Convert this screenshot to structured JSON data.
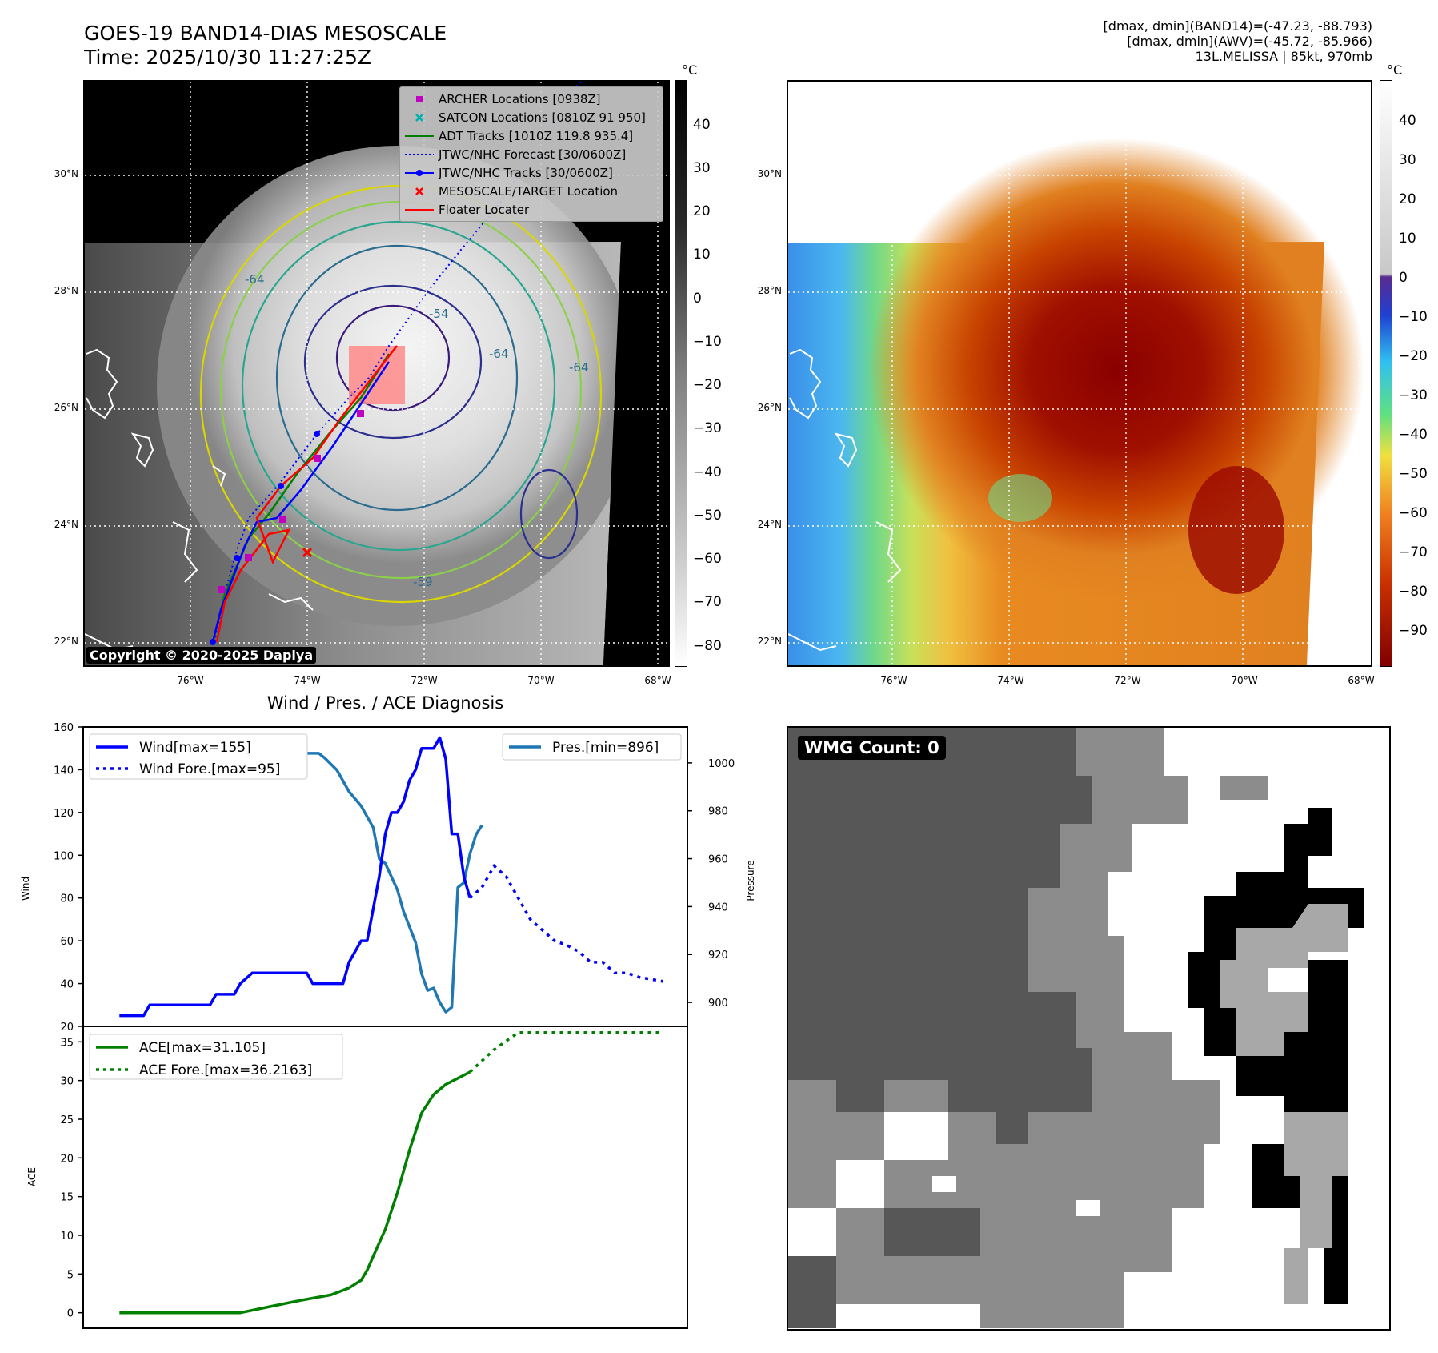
{
  "header": {
    "title_line1": "GOES-19 BAND14-DIAS MESOSCALE",
    "title_line2": "Time: 2025/10/30 11:27:25Z",
    "info_line1": "[dmax, dmin](BAND14)=(-47.23, -88.793)",
    "info_line2": "[dmax, dmin](AWV)=(-45.72, -85.966)",
    "info_line3": "13L.MELISSA | 85kt, 970mb"
  },
  "map_axes": {
    "lat_labels": [
      "30°N",
      "28°N",
      "26°N",
      "24°N",
      "22°N"
    ],
    "lon_labels": [
      "76°W",
      "74°W",
      "72°W",
      "70°W",
      "68°W"
    ]
  },
  "ir_colorbar": {
    "unit": "°C",
    "labels": [
      "40",
      "30",
      "20",
      "10",
      "0",
      "−10",
      "−20",
      "−30",
      "−40",
      "−50",
      "−60",
      "−70",
      "−80"
    ]
  },
  "enhanced_colorbar": {
    "unit": "°C",
    "labels": [
      "40",
      "30",
      "20",
      "10",
      "0",
      "−10",
      "−20",
      "−30",
      "−40",
      "−50",
      "−60",
      "−70",
      "−80",
      "−90"
    ]
  },
  "contour_labels": [
    "-64",
    "-54",
    "-64",
    "-64",
    "-59"
  ],
  "legend": {
    "items": [
      {
        "label": "ARCHER Locations [0938Z]",
        "color": "#c000c0",
        "symbol": "square"
      },
      {
        "label": "SATCON Locations [0810Z 91 950]",
        "color": "#00b0b0",
        "symbol": "x"
      },
      {
        "label": "ADT Tracks [1010Z 119.8 935.4]",
        "color": "#008000",
        "symbol": "line"
      },
      {
        "label": "JTWC/NHC Forecast [30/0600Z]",
        "color": "#0000ff",
        "symbol": "dotted"
      },
      {
        "label": "JTWC/NHC Tracks [30/0600Z]",
        "color": "#0000ff",
        "symbol": "line-dot"
      },
      {
        "label": "MESOSCALE/TARGET Location",
        "color": "#ff0000",
        "symbol": "x"
      },
      {
        "label": "Floater Locater",
        "color": "#ff0000",
        "symbol": "line"
      }
    ]
  },
  "copyright": "Copyright © 2020-2025 Dapiya",
  "diagnosis_title": "Wind / Pres. / ACE Diagnosis",
  "wmg_label": "WMG Count: 0",
  "colors": {
    "wind": "#0000ff",
    "pressure": "#1f77b4",
    "ace": "#008000"
  },
  "chart_data": [
    {
      "type": "line",
      "title": "Wind / Pres. / ACE Diagnosis",
      "ylabel": "Wind",
      "ylim": [
        20,
        160
      ],
      "yticks": [
        "20",
        "40",
        "60",
        "80",
        "100",
        "120",
        "140",
        "160"
      ],
      "series": [
        {
          "name": "Wind[max=155]",
          "style": "solid",
          "x": [
            0,
            4,
            5,
            10,
            15,
            16,
            19,
            20,
            22,
            25,
            26,
            31,
            32,
            37,
            38,
            40,
            41,
            42,
            43,
            44,
            45,
            46,
            47,
            48,
            49,
            50,
            51,
            52,
            53,
            54,
            55,
            56,
            57,
            58
          ],
          "values": [
            25,
            25,
            30,
            30,
            30,
            35,
            35,
            40,
            45,
            45,
            45,
            45,
            40,
            40,
            50,
            60,
            60,
            75,
            90,
            110,
            120,
            120,
            125,
            135,
            140,
            150,
            150,
            150,
            155,
            145,
            110,
            110,
            90,
            80
          ]
        },
        {
          "name": "Wind Fore.[max=95]",
          "style": "dotted",
          "x": [
            58,
            60,
            62,
            64,
            66,
            68,
            70,
            72,
            74,
            76,
            78,
            80,
            82,
            84,
            86,
            88,
            90
          ],
          "values": [
            80,
            85,
            95,
            90,
            80,
            70,
            65,
            60,
            58,
            55,
            50,
            50,
            45,
            45,
            43,
            42,
            41
          ]
        },
        {
          "name": "Pres.[min=896]",
          "style": "solid",
          "axis": "right",
          "ylim": [
            890,
            1015
          ],
          "yticks": [
            "900",
            "920",
            "940",
            "960",
            "980",
            "1000"
          ],
          "x": [
            0,
            5,
            8,
            10,
            14,
            16,
            17,
            18,
            20,
            22,
            24,
            25,
            26,
            28,
            30,
            33,
            34,
            36,
            38,
            40,
            42,
            43,
            44,
            46,
            47,
            49,
            50,
            51,
            52,
            53,
            54,
            55,
            56,
            57,
            58,
            59,
            60
          ],
          "values": [
            1010,
            1010,
            1009,
            1008,
            1007,
            1005,
            1004,
            1004,
            1002,
            1002,
            1003,
            1004,
            1004,
            1004,
            1004,
            1004,
            1002,
            997,
            988,
            982,
            973,
            960,
            958,
            947,
            938,
            925,
            912,
            905,
            906,
            900,
            896,
            898,
            948,
            950,
            962,
            970,
            974
          ]
        }
      ]
    },
    {
      "type": "line",
      "ylabel": "ACE",
      "ylim": [
        -2,
        37
      ],
      "yticks": [
        "0",
        "5",
        "10",
        "15",
        "20",
        "25",
        "30",
        "35"
      ],
      "series": [
        {
          "name": "ACE[max=31.105]",
          "style": "solid",
          "x": [
            0,
            20,
            25,
            30,
            35,
            38,
            40,
            41,
            42,
            44,
            46,
            48,
            50,
            52,
            54,
            56,
            58
          ],
          "values": [
            0,
            0,
            0.8,
            1.6,
            2.3,
            3.2,
            4.2,
            5.5,
            7.3,
            10.8,
            15.5,
            21,
            25.8,
            28.2,
            29.5,
            30.3,
            31.1
          ]
        },
        {
          "name": "ACE Fore.[max=36.2163]",
          "style": "dotted",
          "x": [
            58,
            62,
            66,
            70,
            74,
            78,
            82,
            86,
            90
          ],
          "values": [
            31.1,
            34,
            36.2,
            36.2,
            36.2,
            36.2,
            36.2,
            36.2,
            36.2
          ]
        }
      ]
    }
  ]
}
